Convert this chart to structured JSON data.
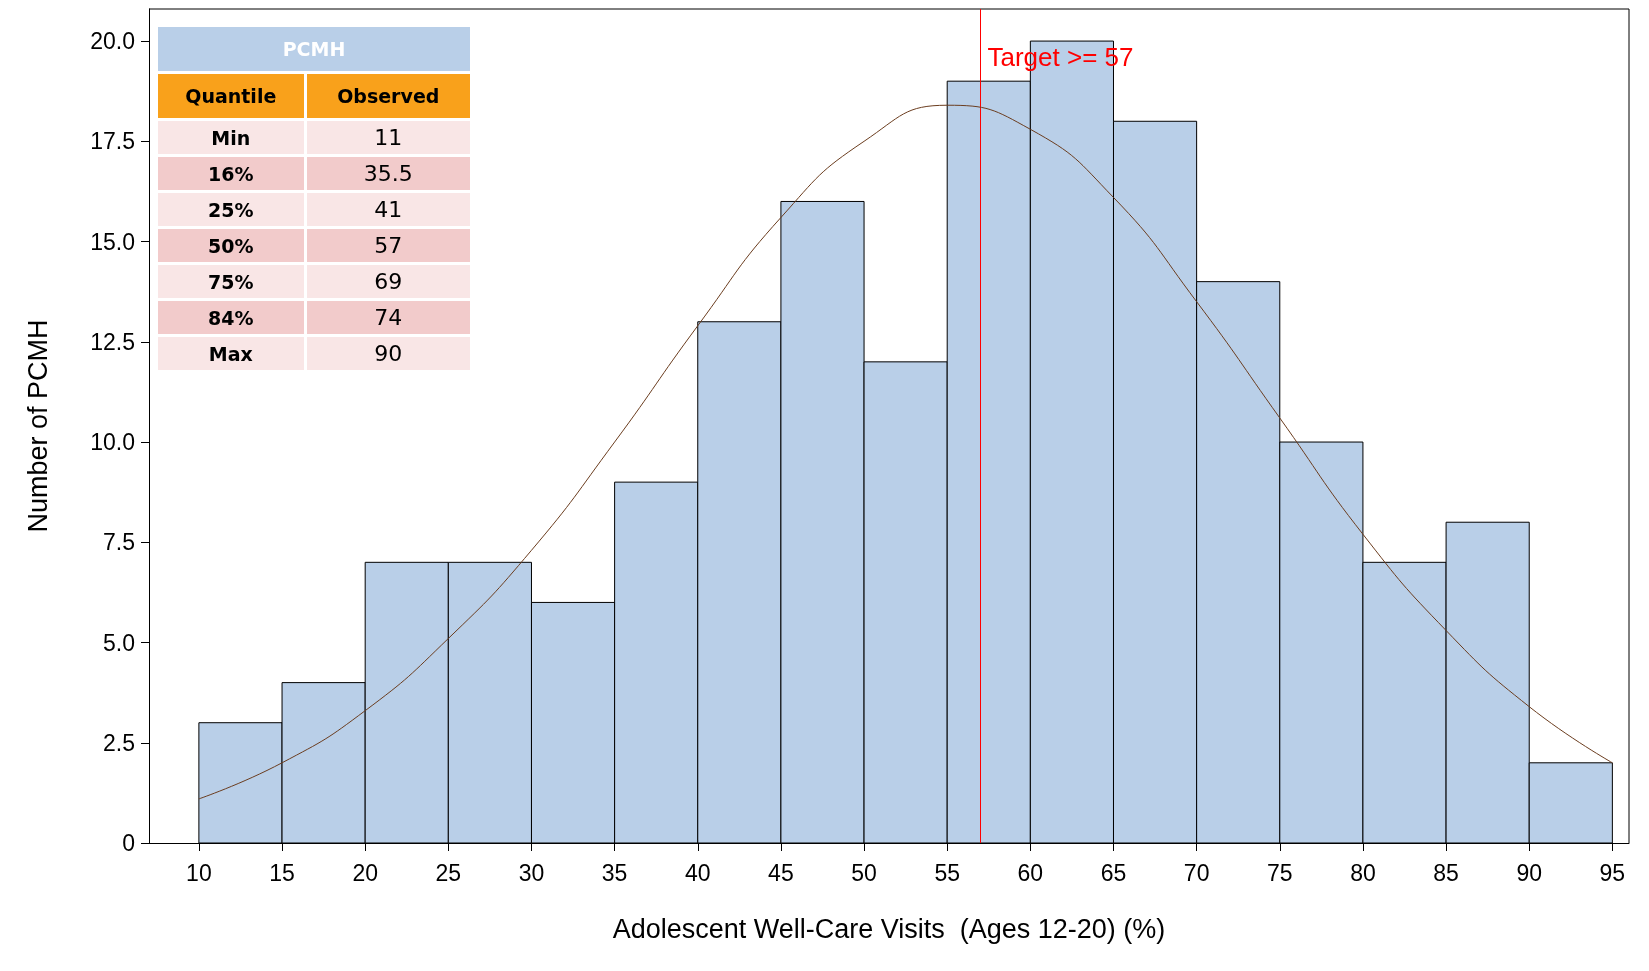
{
  "chart_data": [
    {
      "type": "histogram",
      "xlabel": "Adolescent Well-Care Visits  (Ages 12-20) (%)",
      "ylabel": "Number of PCMH",
      "bins": [
        10,
        15,
        20,
        25,
        30,
        35,
        40,
        45,
        50,
        55,
        60,
        65,
        70,
        75,
        80,
        85,
        90,
        95
      ],
      "values": [
        3,
        4,
        7,
        7,
        6,
        9,
        13,
        16,
        12,
        19,
        20,
        18,
        14,
        10,
        7,
        8,
        2
      ],
      "color": "#b9cfe8",
      "series": [
        {
          "type": "line",
          "color": "#6b3d1f",
          "x": [
            10,
            15,
            20,
            25,
            30,
            35,
            40,
            45,
            50,
            55,
            60,
            65,
            70,
            75,
            80,
            85,
            90,
            95
          ],
          "values": [
            1.1,
            2.0,
            3.3,
            5.1,
            7.3,
            10.0,
            12.9,
            15.6,
            17.5,
            18.4,
            17.8,
            16.1,
            13.5,
            10.6,
            7.7,
            5.3,
            3.4,
            2.0
          ]
        }
      ],
      "xlim": [
        7,
        96
      ],
      "xticks": [
        10,
        15,
        20,
        25,
        30,
        35,
        40,
        45,
        50,
        55,
        60,
        65,
        70,
        75,
        80,
        85,
        90,
        95
      ],
      "ylim": [
        0,
        20.8
      ],
      "yticks": [
        0,
        {
          "value": 2.5,
          "label": "2.5"
        },
        {
          "value": 5,
          "label": "5.0"
        },
        {
          "value": 7.5,
          "label": "7.5"
        },
        {
          "value": 10,
          "label": "10.0"
        },
        {
          "value": 12.5,
          "label": "12.5"
        },
        {
          "value": 15,
          "label": "15.0"
        },
        {
          "value": 17.5,
          "label": "17.5"
        },
        {
          "value": 20,
          "label": "20.0"
        }
      ],
      "ref_lines": [
        {
          "axis": "x",
          "value": 57,
          "label": "Target >= 57",
          "color": "#ff0000"
        }
      ],
      "grid": false
    },
    {
      "type": "other",
      "title": "PCMH",
      "xlabel": "Quantile",
      "ylabel": "Observed",
      "categories": [
        "Min",
        "16%",
        "25%",
        "50%",
        "75%",
        "84%",
        "Max"
      ],
      "values": [
        11,
        35.5,
        41,
        57,
        69,
        74,
        90
      ],
      "data_labels": true
    }
  ]
}
